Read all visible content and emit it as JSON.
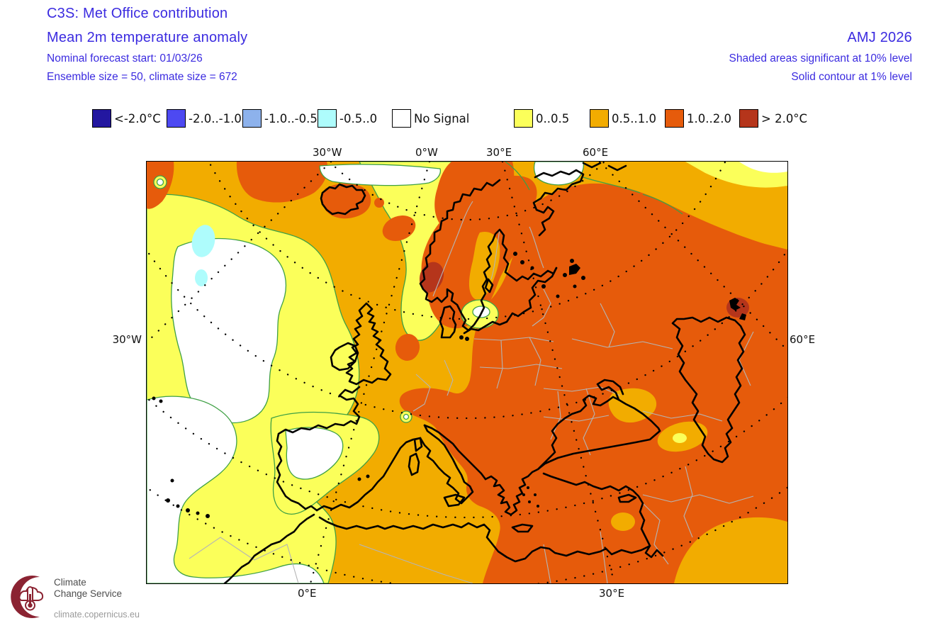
{
  "header": {
    "title_line1": "C3S: Met Office contribution",
    "title_line2": "Mean 2m temperature anomaly",
    "subtitle_line1": "Nominal forecast start: 01/03/26",
    "subtitle_line2": "Ensemble size = 50, climate size = 672",
    "period": "AMJ 2026",
    "note_line1": "Shaded areas significant at 10% level",
    "note_line2": "Solid contour at 1% level"
  },
  "legend": {
    "items": [
      {
        "label": "<-2.0°C",
        "color": "#2317a0"
      },
      {
        "label": "-2.0..-1.0",
        "color": "#4d49f2"
      },
      {
        "label": "-1.0..-0.5",
        "color": "#8db2ec"
      },
      {
        "label": "-0.5..0",
        "color": "#aefcfc"
      },
      {
        "label": "No Signal",
        "color": "#ffffff"
      },
      {
        "label": "0..0.5",
        "color": "#fbff5a"
      },
      {
        "label": "0.5..1.0",
        "color": "#f2ac00"
      },
      {
        "label": "1.0..2.0",
        "color": "#e65b0b"
      },
      {
        "label": "> 2.0°C",
        "color": "#b5351b"
      }
    ]
  },
  "colors": {
    "amber": "#f2ac00",
    "yellow": "#fbff5a",
    "white": "#ffffff",
    "cyan": "#aefcfc",
    "orange_dark": "#e65b0b",
    "red": "#b5351b",
    "contour_green": "#3fa045",
    "border_gray": "#b5b5b5",
    "coast_black": "#000000"
  },
  "map": {
    "axis_labels": {
      "top": [
        "30°W",
        "0°W",
        "30°E",
        "60°E"
      ],
      "left": "30°W",
      "right": "60°E",
      "bottom": [
        "0°E",
        "30°E"
      ]
    }
  },
  "chart_data": {
    "type": "heatmap",
    "title": "Mean 2m temperature anomaly, AMJ 2026 (C3S: Met Office contribution)",
    "units": "°C",
    "bins": [
      "<-2.0",
      "-2.0..-1.0",
      "-1.0..-0.5",
      "-0.5..0",
      "No Signal",
      "0..0.5",
      "0.5..1.0",
      "1.0..2.0",
      ">2.0"
    ],
    "legend_position": "top",
    "region_summary": [
      {
        "region": "Eastern Europe, Balkans, Turkey, Black Sea, Caspian, Russia",
        "bin": "1.0..2.0"
      },
      {
        "region": "Scandinavia interior, Iceland, Alps, North Atlantic patches",
        "bin": "1.0..2.0"
      },
      {
        "region": "Southern Norway spot, spot east of upper Volga",
        "bin": ">2.0"
      },
      {
        "region": "UK, France, central Europe, central Mediterranean, NE Atlantic",
        "bin": "0.5..1.0"
      },
      {
        "region": "West Iberia fringe, NW Africa fringe, west Atlantic band, Norwegian Sea band",
        "bin": "0..0.5"
      },
      {
        "region": "Central Atlantic, SW Atlantic off Morocco, central Iberia, Arctic patches",
        "bin": "No Signal"
      },
      {
        "region": "Small mid-Atlantic spots",
        "bin": "-0.5..0"
      }
    ]
  },
  "footer_logo": {
    "line1": "Climate",
    "line2": "Change Service",
    "url": "climate.copernicus.eu"
  }
}
